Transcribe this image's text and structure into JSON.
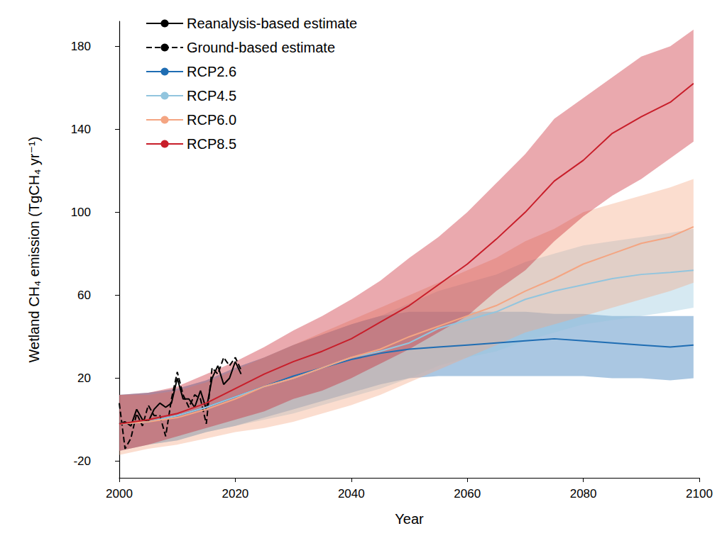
{
  "chart_data": {
    "type": "line",
    "x_label": "Year",
    "y_label": "Wetland CH₄ emission (TgCH₄ yr⁻¹)",
    "xlim": [
      2000,
      2100
    ],
    "xticks": [
      2000,
      2020,
      2040,
      2060,
      2080,
      2100
    ],
    "ylim": [
      -28,
      192
    ],
    "yticks": [
      -20,
      20,
      60,
      100,
      140,
      180
    ],
    "grid": false,
    "legend": "upper left",
    "series": [
      {
        "name": "Reanalysis-based estimate",
        "color": "#000000",
        "line_style": "solid",
        "x": [
          2000,
          2001,
          2002,
          2003,
          2004,
          2005,
          2006,
          2007,
          2008,
          2009,
          2010,
          2011,
          2012,
          2013,
          2014,
          2015,
          2016,
          2017,
          2018,
          2019,
          2020,
          2021
        ],
        "values": [
          -2,
          -1,
          -3,
          5,
          0,
          -1,
          5,
          8,
          6,
          8,
          20,
          10,
          10,
          6,
          14,
          5,
          20,
          26,
          17,
          20,
          28,
          22
        ]
      },
      {
        "name": "Ground-based estimate",
        "color": "#000000",
        "line_style": "dashed",
        "x": [
          2000,
          2001,
          2002,
          2003,
          2004,
          2005,
          2006,
          2007,
          2008,
          2009,
          2010,
          2011,
          2012,
          2013,
          2014,
          2015,
          2016,
          2017,
          2018,
          2019,
          2020,
          2021
        ],
        "values": [
          8,
          -14,
          -9,
          3,
          -3,
          7,
          2,
          2,
          -8,
          10,
          23,
          12,
          6,
          12,
          10,
          -2,
          25,
          22,
          30,
          26,
          30,
          24
        ]
      },
      {
        "name": "RCP2.6",
        "color": "#1f6db3",
        "line_style": "solid",
        "x": [
          2000,
          2005,
          2010,
          2015,
          2020,
          2025,
          2030,
          2035,
          2040,
          2045,
          2050,
          2055,
          2060,
          2065,
          2070,
          2075,
          2080,
          2085,
          2090,
          2095,
          2099
        ],
        "values": [
          -2,
          -1,
          2,
          6,
          11,
          16,
          21,
          25,
          29,
          32,
          34,
          35,
          36,
          37,
          38,
          39,
          38,
          37,
          36,
          35,
          36
        ],
        "lower": [
          -15,
          -12,
          -10,
          -6,
          -3,
          1,
          5,
          9,
          13,
          17,
          20,
          21,
          21,
          21,
          21,
          21,
          21,
          20,
          20,
          19,
          20
        ],
        "upper": [
          12,
          13,
          15,
          19,
          25,
          30,
          36,
          41,
          46,
          50,
          52,
          52,
          52,
          52,
          52,
          51,
          51,
          50,
          50,
          50,
          50
        ]
      },
      {
        "name": "RCP4.5",
        "color": "#92c5de",
        "line_style": "solid",
        "x": [
          2000,
          2005,
          2010,
          2015,
          2020,
          2025,
          2030,
          2035,
          2040,
          2045,
          2050,
          2055,
          2060,
          2065,
          2070,
          2075,
          2080,
          2085,
          2090,
          2095,
          2099
        ],
        "values": [
          -2,
          -1,
          2,
          6,
          11,
          16,
          20,
          25,
          30,
          33,
          37,
          44,
          48,
          52,
          58,
          62,
          65,
          68,
          70,
          71,
          72
        ],
        "lower": [
          -15,
          -12,
          -10,
          -6,
          -3,
          0,
          3,
          7,
          11,
          15,
          20,
          26,
          30,
          33,
          38,
          42,
          46,
          48,
          50,
          52,
          54
        ],
        "upper": [
          12,
          13,
          15,
          19,
          25,
          30,
          36,
          41,
          46,
          50,
          56,
          62,
          66,
          70,
          76,
          80,
          84,
          86,
          88,
          90,
          92
        ]
      },
      {
        "name": "RCP6.0",
        "color": "#f4a582",
        "line_style": "solid",
        "x": [
          2000,
          2005,
          2010,
          2015,
          2020,
          2025,
          2030,
          2035,
          2040,
          2045,
          2050,
          2055,
          2060,
          2065,
          2070,
          2075,
          2080,
          2085,
          2090,
          2095,
          2099
        ],
        "values": [
          -2,
          -1,
          1,
          5,
          10,
          16,
          20,
          25,
          30,
          34,
          40,
          45,
          50,
          55,
          62,
          68,
          75,
          80,
          85,
          88,
          93
        ],
        "lower": [
          -17,
          -14,
          -12,
          -9,
          -6,
          -4,
          -1,
          3,
          7,
          12,
          18,
          24,
          30,
          36,
          42,
          46,
          50,
          54,
          58,
          62,
          66
        ],
        "upper": [
          12,
          12,
          14,
          18,
          24,
          30,
          36,
          42,
          48,
          54,
          60,
          66,
          72,
          78,
          86,
          92,
          100,
          104,
          108,
          112,
          116
        ]
      },
      {
        "name": "RCP8.5",
        "color": "#c81e2a",
        "line_style": "solid",
        "x": [
          2000,
          2005,
          2010,
          2015,
          2020,
          2025,
          2030,
          2035,
          2040,
          2045,
          2050,
          2055,
          2060,
          2065,
          2070,
          2075,
          2080,
          2085,
          2090,
          2095,
          2099
        ],
        "values": [
          -2,
          0,
          3,
          8,
          15,
          22,
          28,
          33,
          39,
          47,
          55,
          65,
          75,
          87,
          100,
          115,
          125,
          138,
          146,
          153,
          162
        ],
        "lower": [
          -15,
          -12,
          -8,
          -4,
          0,
          4,
          10,
          14,
          20,
          27,
          34,
          42,
          50,
          62,
          72,
          86,
          98,
          108,
          116,
          126,
          134
        ],
        "upper": [
          12,
          13,
          16,
          22,
          28,
          35,
          43,
          50,
          58,
          67,
          78,
          88,
          100,
          114,
          128,
          145,
          155,
          165,
          175,
          180,
          188
        ]
      }
    ]
  }
}
